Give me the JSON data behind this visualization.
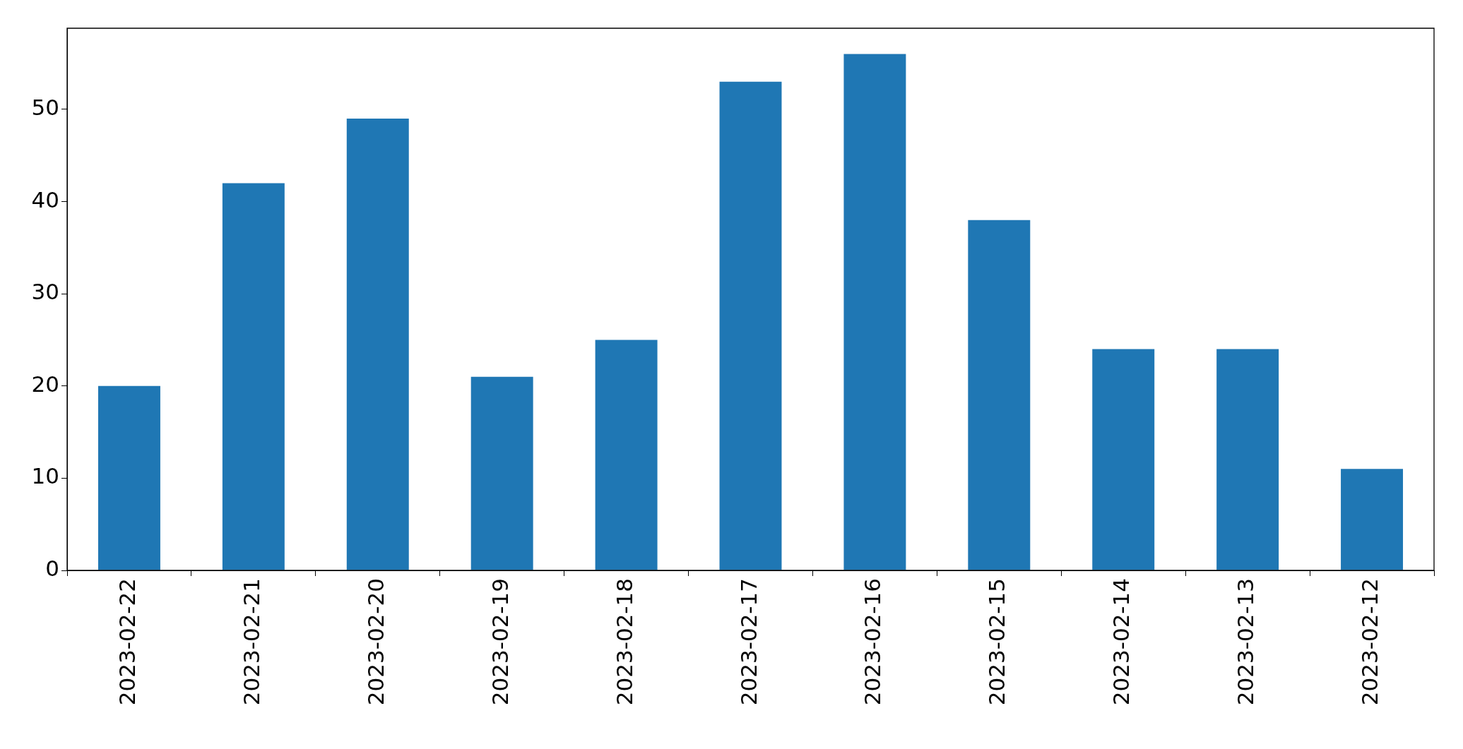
{
  "chart_data": {
    "type": "bar",
    "categories": [
      "2023-02-22",
      "2023-02-21",
      "2023-02-20",
      "2023-02-19",
      "2023-02-18",
      "2023-02-17",
      "2023-02-16",
      "2023-02-15",
      "2023-02-14",
      "2023-02-13",
      "2023-02-12"
    ],
    "values": [
      20,
      42,
      49,
      21,
      25,
      53,
      56,
      38,
      24,
      24,
      11
    ],
    "color": "#1f77b4",
    "ylim": [
      0,
      58.8
    ],
    "yticks": [
      0,
      10,
      20,
      30,
      40,
      50
    ],
    "grid": false,
    "legend": false
  }
}
